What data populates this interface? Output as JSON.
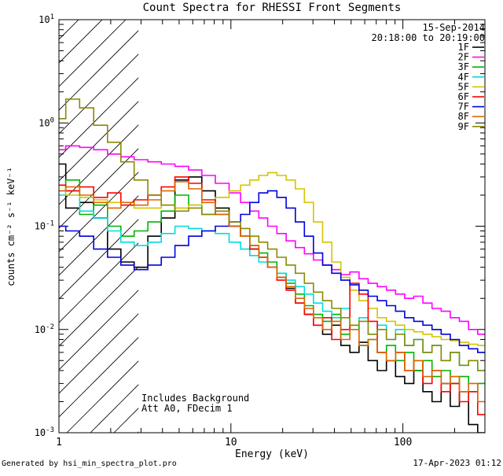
{
  "title": "Count Spectra for RHESSI Front Segments",
  "date_label": "15-Sep-2014",
  "time_range": "20:18:00 to 20:19:00",
  "colors": {
    "datetime": "#007766",
    "axis": "#000000",
    "background": "#ffffff"
  },
  "annotations": {
    "line1": "Includes Background",
    "line2": "Att A0, FDecim 1"
  },
  "footer": {
    "left": "Generated by hsi_min_spectra_plot.pro",
    "right": "17-Apr-2023 01:12"
  },
  "chart_data": {
    "type": "line",
    "title": "Count Spectra for RHESSI Front Segments",
    "x_scale": "log",
    "y_scale": "log",
    "xlabel": "Energy (keV)",
    "ylabel": "counts cm⁻² s⁻¹ keV⁻¹",
    "xlim": [
      1,
      300
    ],
    "ylim": [
      0.001,
      10
    ],
    "grid": false,
    "legend_position": "top-right",
    "hatched_region_kev": [
      1,
      2.9
    ],
    "energies_kev": [
      1.0,
      1.2,
      1.45,
      1.75,
      2.1,
      2.5,
      3.0,
      3.6,
      4.3,
      5.2,
      6.2,
      7.4,
      8.9,
      10.7,
      12.1,
      13.7,
      15.4,
      17.4,
      19.7,
      22.3,
      25.2,
      28.4,
      32.1,
      36.3,
      41.0,
      46.3,
      52.3,
      59.1,
      66.8,
      75.5,
      85.3,
      96.4,
      108.9,
      123.0,
      139.0,
      157.1,
      177.5,
      200.6,
      226.6,
      256.1,
      289.4
    ],
    "series": [
      {
        "name": "1F",
        "color": "#000000",
        "values": [
          0.4,
          0.15,
          0.17,
          0.12,
          0.06,
          0.045,
          0.04,
          0.08,
          0.12,
          0.28,
          0.3,
          0.22,
          0.15,
          0.1,
          0.08,
          0.06,
          0.05,
          0.04,
          0.032,
          0.025,
          0.018,
          0.014,
          0.011,
          0.009,
          0.011,
          0.007,
          0.006,
          0.0075,
          0.005,
          0.004,
          0.005,
          0.0035,
          0.003,
          0.004,
          0.0025,
          0.002,
          0.003,
          0.0018,
          0.0025,
          0.0012,
          0.001
        ]
      },
      {
        "name": "2F",
        "color": "#ff00ff",
        "values": [
          0.55,
          0.6,
          0.58,
          0.55,
          0.5,
          0.47,
          0.44,
          0.42,
          0.4,
          0.38,
          0.35,
          0.31,
          0.26,
          0.21,
          0.17,
          0.14,
          0.12,
          0.1,
          0.085,
          0.072,
          0.062,
          0.054,
          0.047,
          0.042,
          0.038,
          0.034,
          0.036,
          0.031,
          0.028,
          0.026,
          0.024,
          0.022,
          0.02,
          0.021,
          0.018,
          0.016,
          0.015,
          0.013,
          0.012,
          0.01,
          0.009
        ]
      },
      {
        "name": "3F",
        "color": "#00b400",
        "values": [
          0.25,
          0.28,
          0.13,
          0.16,
          0.1,
          0.08,
          0.09,
          0.11,
          0.14,
          0.2,
          0.16,
          0.13,
          0.14,
          0.1,
          0.08,
          0.065,
          0.055,
          0.045,
          0.035,
          0.028,
          0.022,
          0.017,
          0.014,
          0.012,
          0.014,
          0.009,
          0.011,
          0.007,
          0.008,
          0.006,
          0.007,
          0.005,
          0.006,
          0.004,
          0.005,
          0.0035,
          0.004,
          0.003,
          0.0035,
          0.0025,
          0.003
        ]
      },
      {
        "name": "4F",
        "color": "#00dddd",
        "values": [
          0.2,
          0.22,
          0.14,
          0.12,
          0.09,
          0.07,
          0.065,
          0.07,
          0.085,
          0.1,
          0.095,
          0.09,
          0.085,
          0.07,
          0.06,
          0.052,
          0.045,
          0.04,
          0.035,
          0.03,
          0.026,
          0.022,
          0.018,
          0.015,
          0.013,
          0.016,
          0.011,
          0.013,
          0.009,
          0.011,
          0.008,
          0.01,
          0.007,
          0.008,
          0.006,
          0.007,
          0.005,
          0.006,
          0.0045,
          0.005,
          0.004
        ]
      },
      {
        "name": "5F",
        "color": "#d4c400",
        "values": [
          0.22,
          0.2,
          0.19,
          0.18,
          0.17,
          0.16,
          0.15,
          0.15,
          0.16,
          0.15,
          0.16,
          0.17,
          0.19,
          0.22,
          0.25,
          0.28,
          0.31,
          0.33,
          0.31,
          0.28,
          0.23,
          0.17,
          0.11,
          0.07,
          0.045,
          0.032,
          0.024,
          0.019,
          0.016,
          0.013,
          0.012,
          0.011,
          0.01,
          0.0095,
          0.009,
          0.0085,
          0.008,
          0.0078,
          0.0075,
          0.0072,
          0.007
        ]
      },
      {
        "name": "6F",
        "color": "#ff0000",
        "values": [
          0.25,
          0.22,
          0.24,
          0.19,
          0.21,
          0.16,
          0.18,
          0.2,
          0.24,
          0.3,
          0.26,
          0.18,
          0.13,
          0.1,
          0.08,
          0.06,
          0.05,
          0.04,
          0.03,
          0.024,
          0.018,
          0.014,
          0.011,
          0.013,
          0.008,
          0.01,
          0.028,
          0.022,
          0.012,
          0.006,
          0.005,
          0.006,
          0.004,
          0.005,
          0.003,
          0.004,
          0.0025,
          0.003,
          0.002,
          0.0025,
          0.0015
        ]
      },
      {
        "name": "7F",
        "color": "#0000dd",
        "values": [
          0.1,
          0.09,
          0.08,
          0.06,
          0.05,
          0.042,
          0.038,
          0.042,
          0.05,
          0.065,
          0.08,
          0.09,
          0.1,
          0.11,
          0.13,
          0.17,
          0.21,
          0.22,
          0.19,
          0.15,
          0.11,
          0.08,
          0.055,
          0.042,
          0.035,
          0.03,
          0.027,
          0.024,
          0.021,
          0.019,
          0.017,
          0.015,
          0.013,
          0.012,
          0.011,
          0.01,
          0.009,
          0.008,
          0.007,
          0.0065,
          0.006
        ]
      },
      {
        "name": "8F",
        "color": "#dd6600",
        "values": [
          0.22,
          0.24,
          0.2,
          0.17,
          0.15,
          0.17,
          0.16,
          0.18,
          0.22,
          0.27,
          0.23,
          0.17,
          0.13,
          0.1,
          0.08,
          0.065,
          0.05,
          0.04,
          0.032,
          0.026,
          0.02,
          0.016,
          0.013,
          0.01,
          0.012,
          0.008,
          0.01,
          0.007,
          0.008,
          0.006,
          0.005,
          0.006,
          0.004,
          0.005,
          0.0035,
          0.004,
          0.003,
          0.0035,
          0.0025,
          0.003,
          0.002
        ]
      },
      {
        "name": "9F",
        "color": "#8a8a00",
        "values": [
          1.1,
          1.7,
          1.4,
          0.95,
          0.65,
          0.42,
          0.28,
          0.2,
          0.16,
          0.14,
          0.15,
          0.13,
          0.14,
          0.11,
          0.095,
          0.08,
          0.07,
          0.06,
          0.05,
          0.042,
          0.035,
          0.028,
          0.023,
          0.019,
          0.016,
          0.013,
          0.011,
          0.012,
          0.009,
          0.01,
          0.008,
          0.009,
          0.007,
          0.008,
          0.006,
          0.007,
          0.005,
          0.006,
          0.0045,
          0.005,
          0.004
        ]
      }
    ]
  }
}
